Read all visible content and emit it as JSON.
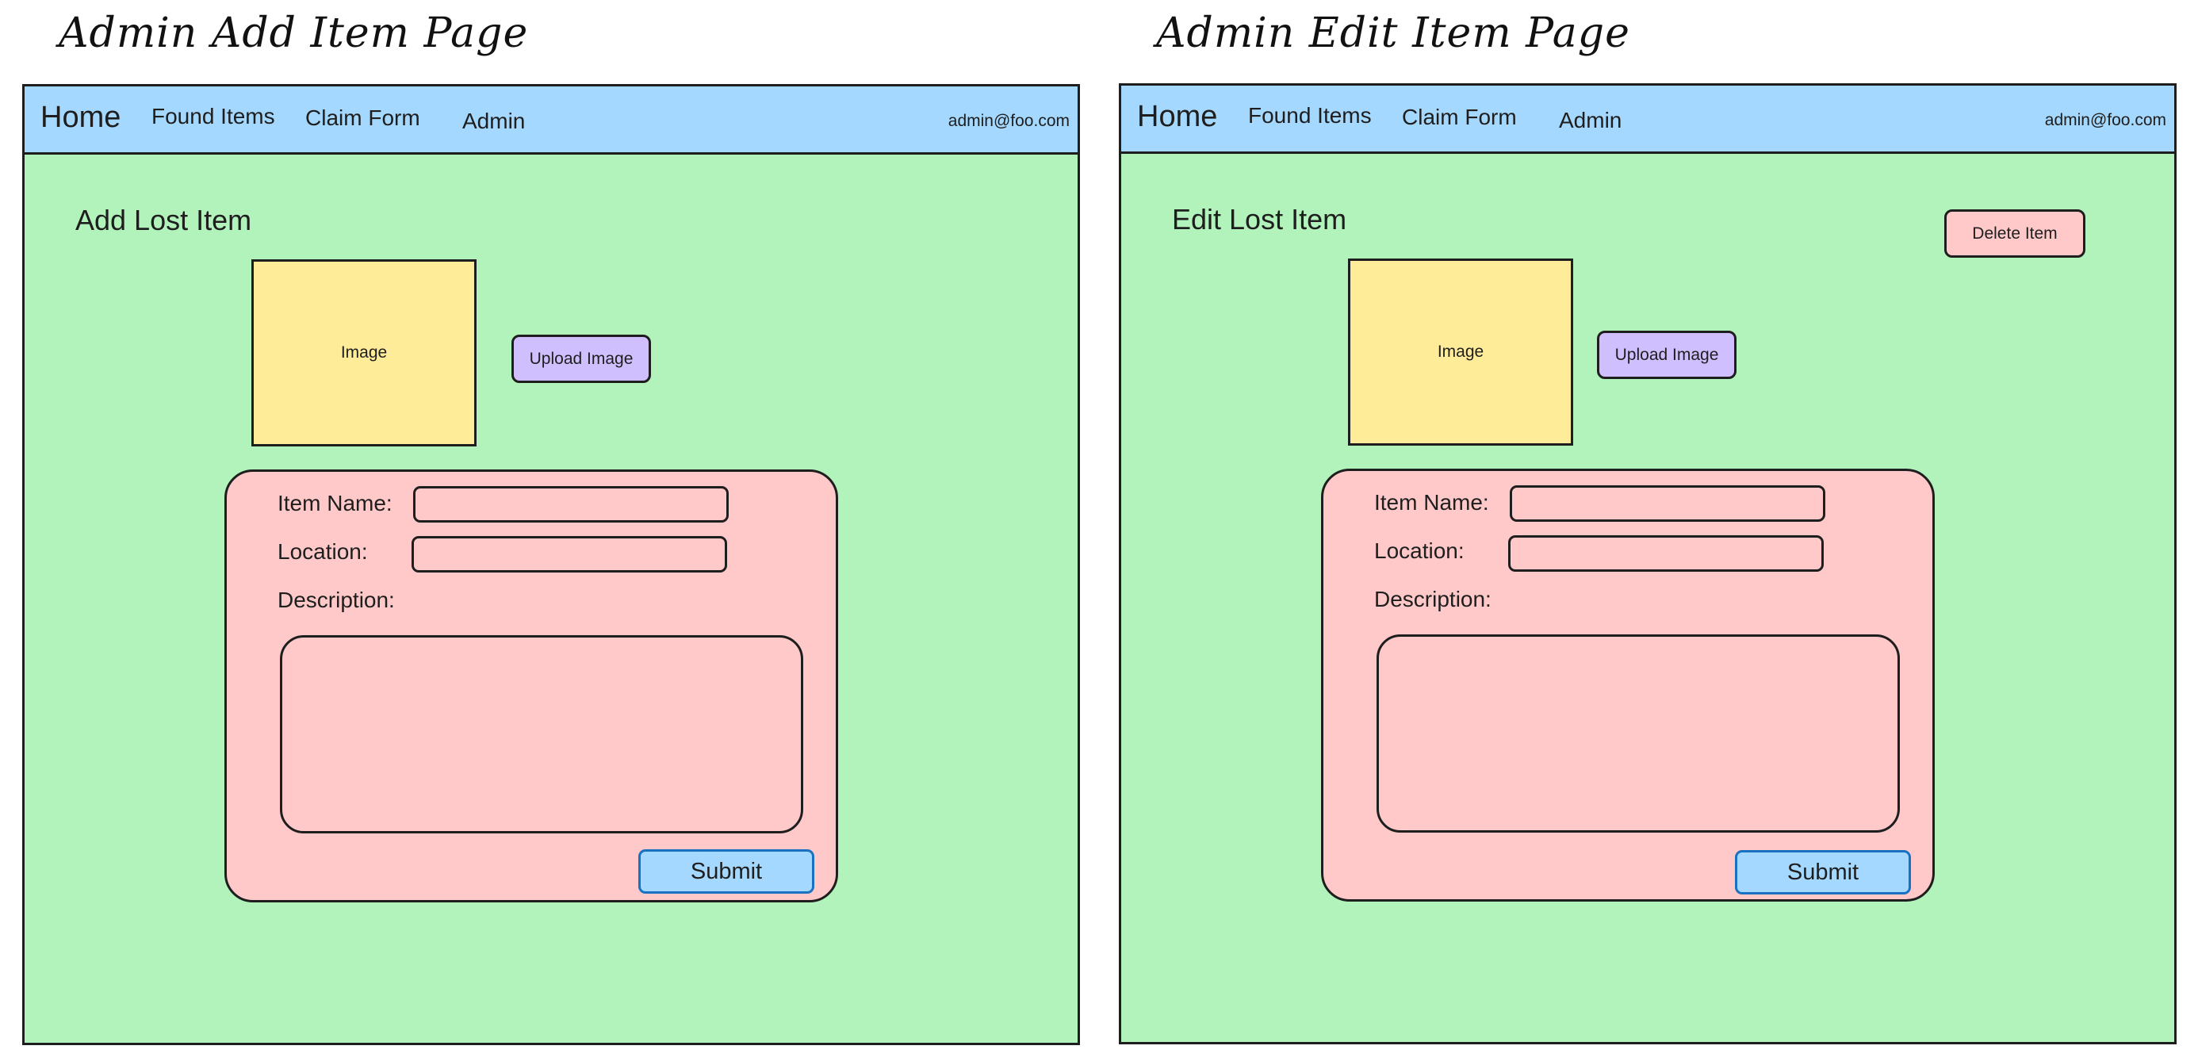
{
  "add_page": {
    "title": "Admin Add Item Page",
    "nav": {
      "home": "Home",
      "found_items": "Found Items",
      "claim_form": "Claim Form",
      "admin": "Admin",
      "email": "admin@foo.com"
    },
    "heading": "Add Lost Item",
    "image_label": "Image",
    "upload_button": "Upload Image",
    "form": {
      "item_name_label": "Item Name:",
      "location_label": "Location:",
      "description_label": "Description:",
      "submit_label": "Submit"
    }
  },
  "edit_page": {
    "title": "Admin Edit Item Page",
    "nav": {
      "home": "Home",
      "found_items": "Found Items",
      "claim_form": "Claim Form",
      "admin": "Admin",
      "email": "admin@foo.com"
    },
    "heading": "Edit Lost Item",
    "delete_button": "Delete Item",
    "image_label": "Image",
    "upload_button": "Upload Image",
    "form": {
      "item_name_label": "Item Name:",
      "location_label": "Location:",
      "description_label": "Description:",
      "submit_label": "Submit"
    }
  },
  "colors": {
    "page_bg": "#b2f2bb",
    "nav_bg": "#a5d8ff",
    "image_bg": "#ffec99",
    "form_bg": "#ffc9c9",
    "upload_bg": "#d0bfff",
    "submit_bg": "#a5d8ff",
    "submit_border": "#1971c2",
    "stroke": "#1e1e1e"
  }
}
